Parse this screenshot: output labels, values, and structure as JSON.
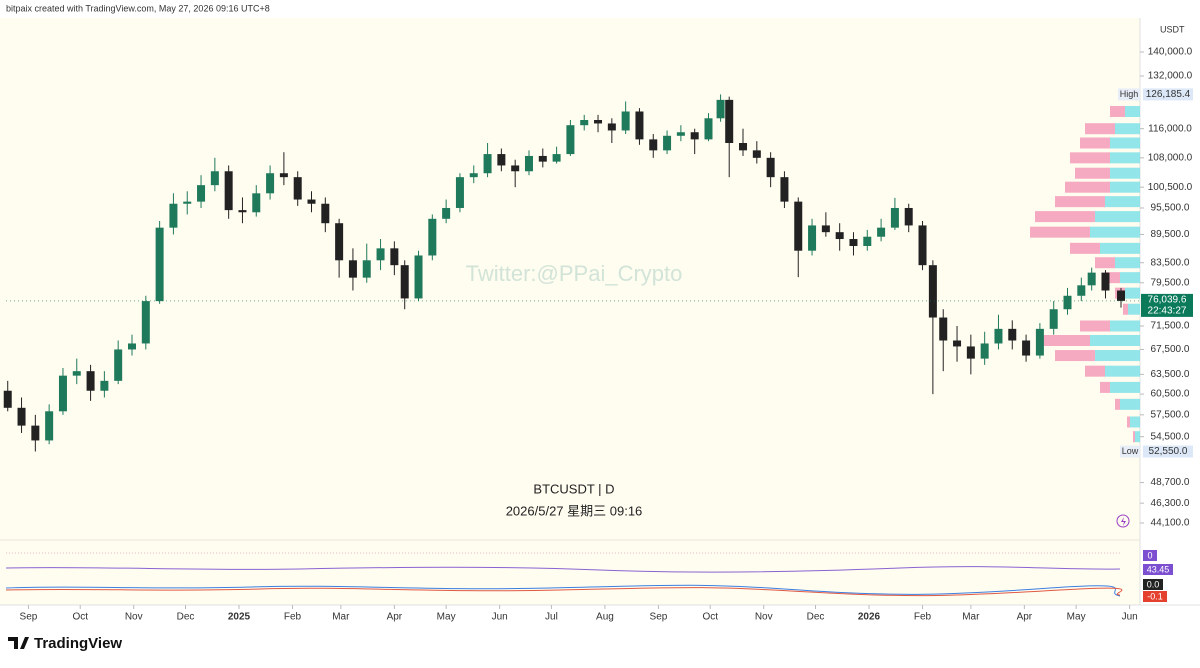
{
  "header": {
    "credit": "bitpaix created with TradingView.com, May 27, 2026 09:16 UTC+8"
  },
  "chart_data": {
    "type": "candlestick",
    "currency": "USDT",
    "watermark": "Twitter:@PPai_Crypto",
    "symbol": "BTCUSDT | D",
    "timestamp": "2026/5/27 星期三 09:16",
    "log_scale": true,
    "up_color": "#1f7a5c",
    "down_color": "#222222",
    "xlim": [
      -13,
      644
    ],
    "ylim": [
      42300,
      150700
    ],
    "xticks": [
      {
        "value": 0,
        "label": "Sep"
      },
      {
        "value": 30,
        "label": "Oct"
      },
      {
        "value": 61,
        "label": "Nov"
      },
      {
        "value": 91,
        "label": "Dec"
      },
      {
        "value": 122,
        "label": "2025"
      },
      {
        "value": 153,
        "label": "Feb"
      },
      {
        "value": 181,
        "label": "Mar"
      },
      {
        "value": 212,
        "label": "Apr"
      },
      {
        "value": 242,
        "label": "May"
      },
      {
        "value": 273,
        "label": "Jun"
      },
      {
        "value": 303,
        "label": "Jul"
      },
      {
        "value": 334,
        "label": "Aug"
      },
      {
        "value": 365,
        "label": "Sep"
      },
      {
        "value": 395,
        "label": "Oct"
      },
      {
        "value": 426,
        "label": "Nov"
      },
      {
        "value": 456,
        "label": "Dec"
      },
      {
        "value": 487,
        "label": "2026"
      },
      {
        "value": 518,
        "label": "Feb"
      },
      {
        "value": 546,
        "label": "Mar"
      },
      {
        "value": 577,
        "label": "Apr"
      },
      {
        "value": 607,
        "label": "May"
      },
      {
        "value": 638,
        "label": "Jun"
      }
    ],
    "yticks": [
      {
        "value": 140000,
        "label": "140,000.0"
      },
      {
        "value": 132000,
        "label": "132,000.0"
      },
      {
        "value": 116000,
        "label": "116,000.0"
      },
      {
        "value": 108000,
        "label": "108,000.0"
      },
      {
        "value": 100500,
        "label": "100,500.0"
      },
      {
        "value": 95500,
        "label": "95,500.0"
      },
      {
        "value": 89500,
        "label": "89,500.0"
      },
      {
        "value": 83500,
        "label": "83,500.0"
      },
      {
        "value": 79500,
        "label": "79,500.0"
      },
      {
        "value": 71500,
        "label": "71,500.0"
      },
      {
        "value": 67500,
        "label": "67,500.0"
      },
      {
        "value": 63500,
        "label": "63,500.0"
      },
      {
        "value": 60500,
        "label": "60,500.0"
      },
      {
        "value": 57500,
        "label": "57,500.0"
      },
      {
        "value": 54500,
        "label": "54,500.0"
      },
      {
        "value": 48700,
        "label": "48,700.0"
      },
      {
        "value": 46300,
        "label": "46,300.0"
      },
      {
        "value": 44100,
        "label": "44,100.0"
      }
    ],
    "high": {
      "name": "High",
      "value": 126185.4,
      "label": "126,185.4"
    },
    "low": {
      "name": "Low",
      "value": 52550,
      "label": "52,550.0"
    },
    "last": {
      "value": 76039.6,
      "label": "76,039.6",
      "countdown": "22:43:27",
      "color": "#0a7a5a"
    },
    "x": [
      -12,
      -4,
      4,
      12,
      20,
      28,
      36,
      44,
      52,
      60,
      68,
      76,
      84,
      92,
      100,
      108,
      116,
      124,
      132,
      140,
      148,
      156,
      164,
      172,
      180,
      188,
      196,
      204,
      212,
      218,
      226,
      234,
      242,
      250,
      258,
      266,
      274,
      282,
      290,
      298,
      306,
      314,
      322,
      330,
      338,
      346,
      354,
      362,
      370,
      378,
      386,
      394,
      401,
      406,
      414,
      422,
      430,
      438,
      446,
      454,
      462,
      470,
      478,
      486,
      494,
      502,
      510,
      518,
      524,
      530,
      538,
      546,
      554,
      562,
      570,
      578,
      586,
      594,
      602,
      610,
      616,
      624,
      633
    ],
    "ohlc": [
      [
        61000,
        62500,
        58000,
        58500
      ],
      [
        58500,
        60000,
        55000,
        56000
      ],
      [
        56000,
        57500,
        52550,
        54000
      ],
      [
        54000,
        59000,
        53500,
        58000
      ],
      [
        58000,
        64500,
        57500,
        63300
      ],
      [
        63300,
        66000,
        62000,
        64000
      ],
      [
        64000,
        65000,
        59500,
        61000
      ],
      [
        61000,
        64000,
        60000,
        62500
      ],
      [
        62500,
        69000,
        62000,
        67500
      ],
      [
        67500,
        70000,
        66500,
        68500
      ],
      [
        68500,
        77000,
        67500,
        76000
      ],
      [
        76000,
        92500,
        75500,
        91000
      ],
      [
        91000,
        99000,
        89500,
        96500
      ],
      [
        96500,
        99500,
        94000,
        97000
      ],
      [
        97000,
        103500,
        95500,
        101000
      ],
      [
        101000,
        108000,
        99500,
        104500
      ],
      [
        104500,
        106000,
        93000,
        95000
      ],
      [
        95000,
        98000,
        92000,
        94500
      ],
      [
        94500,
        101000,
        93500,
        99000
      ],
      [
        99000,
        106000,
        97500,
        104000
      ],
      [
        104000,
        109500,
        101000,
        103000
      ],
      [
        103000,
        104500,
        96000,
        97500
      ],
      [
        97500,
        99500,
        94500,
        96500
      ],
      [
        96500,
        98000,
        90000,
        92000
      ],
      [
        92000,
        93000,
        80500,
        84000
      ],
      [
        84000,
        86500,
        78000,
        80500
      ],
      [
        80500,
        87500,
        79500,
        84000
      ],
      [
        84000,
        88500,
        82000,
        86500
      ],
      [
        86500,
        88000,
        81000,
        83000
      ],
      [
        83000,
        84000,
        74500,
        76500
      ],
      [
        76500,
        86000,
        76000,
        85000
      ],
      [
        85000,
        94000,
        84000,
        93000
      ],
      [
        93000,
        97500,
        92000,
        95500
      ],
      [
        95500,
        104000,
        94500,
        103000
      ],
      [
        103000,
        106000,
        101500,
        104000
      ],
      [
        104000,
        112000,
        103000,
        109000
      ],
      [
        109000,
        110500,
        104500,
        106000
      ],
      [
        106000,
        107500,
        100500,
        104500
      ],
      [
        104500,
        110000,
        103500,
        108500
      ],
      [
        108500,
        110500,
        105500,
        107000
      ],
      [
        107000,
        111000,
        106500,
        109000
      ],
      [
        109000,
        118500,
        108500,
        117000
      ],
      [
        117000,
        120000,
        115500,
        118500
      ],
      [
        118500,
        120000,
        115000,
        117500
      ],
      [
        117500,
        119000,
        112000,
        115500
      ],
      [
        115500,
        124000,
        114500,
        121000
      ],
      [
        121000,
        122000,
        111500,
        113000
      ],
      [
        113000,
        114500,
        108000,
        110000
      ],
      [
        110000,
        115500,
        109000,
        114000
      ],
      [
        114000,
        117000,
        112500,
        115000
      ],
      [
        115000,
        116000,
        109000,
        113000
      ],
      [
        113000,
        120500,
        112500,
        119000
      ],
      [
        119000,
        126185.4,
        118000,
        124500
      ],
      [
        124500,
        125500,
        103000,
        112000
      ],
      [
        112000,
        116000,
        108500,
        110000
      ],
      [
        110000,
        112500,
        106500,
        108000
      ],
      [
        108000,
        109500,
        100500,
        103000
      ],
      [
        103000,
        104500,
        95500,
        97000
      ],
      [
        97000,
        98000,
        80600,
        86000
      ],
      [
        86000,
        93000,
        85000,
        91500
      ],
      [
        91500,
        94500,
        89000,
        90000
      ],
      [
        90000,
        92000,
        86000,
        88500
      ],
      [
        88500,
        90000,
        85000,
        87000
      ],
      [
        87000,
        90500,
        86000,
        89000
      ],
      [
        89000,
        93000,
        88000,
        91000
      ],
      [
        91000,
        97900,
        90500,
        95500
      ],
      [
        95500,
        96500,
        90000,
        91500
      ],
      [
        91500,
        92500,
        82000,
        83000
      ],
      [
        83000,
        84000,
        60500,
        73000
      ],
      [
        73000,
        74500,
        64000,
        69000
      ],
      [
        69000,
        71500,
        65500,
        68000
      ],
      [
        68000,
        70000,
        63500,
        66000
      ],
      [
        66000,
        70500,
        65000,
        68500
      ],
      [
        68500,
        73500,
        67500,
        71000
      ],
      [
        71000,
        72500,
        67500,
        69000
      ],
      [
        69000,
        70000,
        65500,
        66500
      ],
      [
        66500,
        72000,
        66000,
        71000
      ],
      [
        71000,
        76000,
        70000,
        74500
      ],
      [
        74500,
        78500,
        73500,
        77000
      ],
      [
        77000,
        80500,
        76000,
        79000
      ],
      [
        79000,
        82500,
        78000,
        81500
      ],
      [
        81500,
        82000,
        76500,
        78000
      ],
      [
        78000,
        78500,
        74800,
        76039.6
      ]
    ],
    "volume_profile": {
      "up_color": "#7fe0e6",
      "down_color": "#f59bb9",
      "prices": [
        126000,
        121000,
        116000,
        112000,
        108000,
        104000,
        100500,
        97000,
        93500,
        90000,
        86500,
        83500,
        80500,
        77500,
        74500,
        71500,
        69000,
        66500,
        64000,
        61500,
        59000,
        56500,
        54500
      ],
      "up": [
        3,
        15,
        25,
        30,
        30,
        30,
        30,
        35,
        45,
        50,
        40,
        25,
        20,
        15,
        12,
        30,
        50,
        45,
        35,
        30,
        20,
        10,
        5
      ],
      "down": [
        2,
        15,
        30,
        30,
        40,
        35,
        45,
        50,
        60,
        60,
        30,
        20,
        15,
        10,
        5,
        30,
        50,
        40,
        20,
        10,
        5,
        3,
        2
      ]
    },
    "indicators": {
      "volume": "0",
      "rsi": "43.45",
      "macd": "0.0",
      "signal": "-0.1"
    }
  },
  "footer": {
    "brand": "TradingView"
  }
}
